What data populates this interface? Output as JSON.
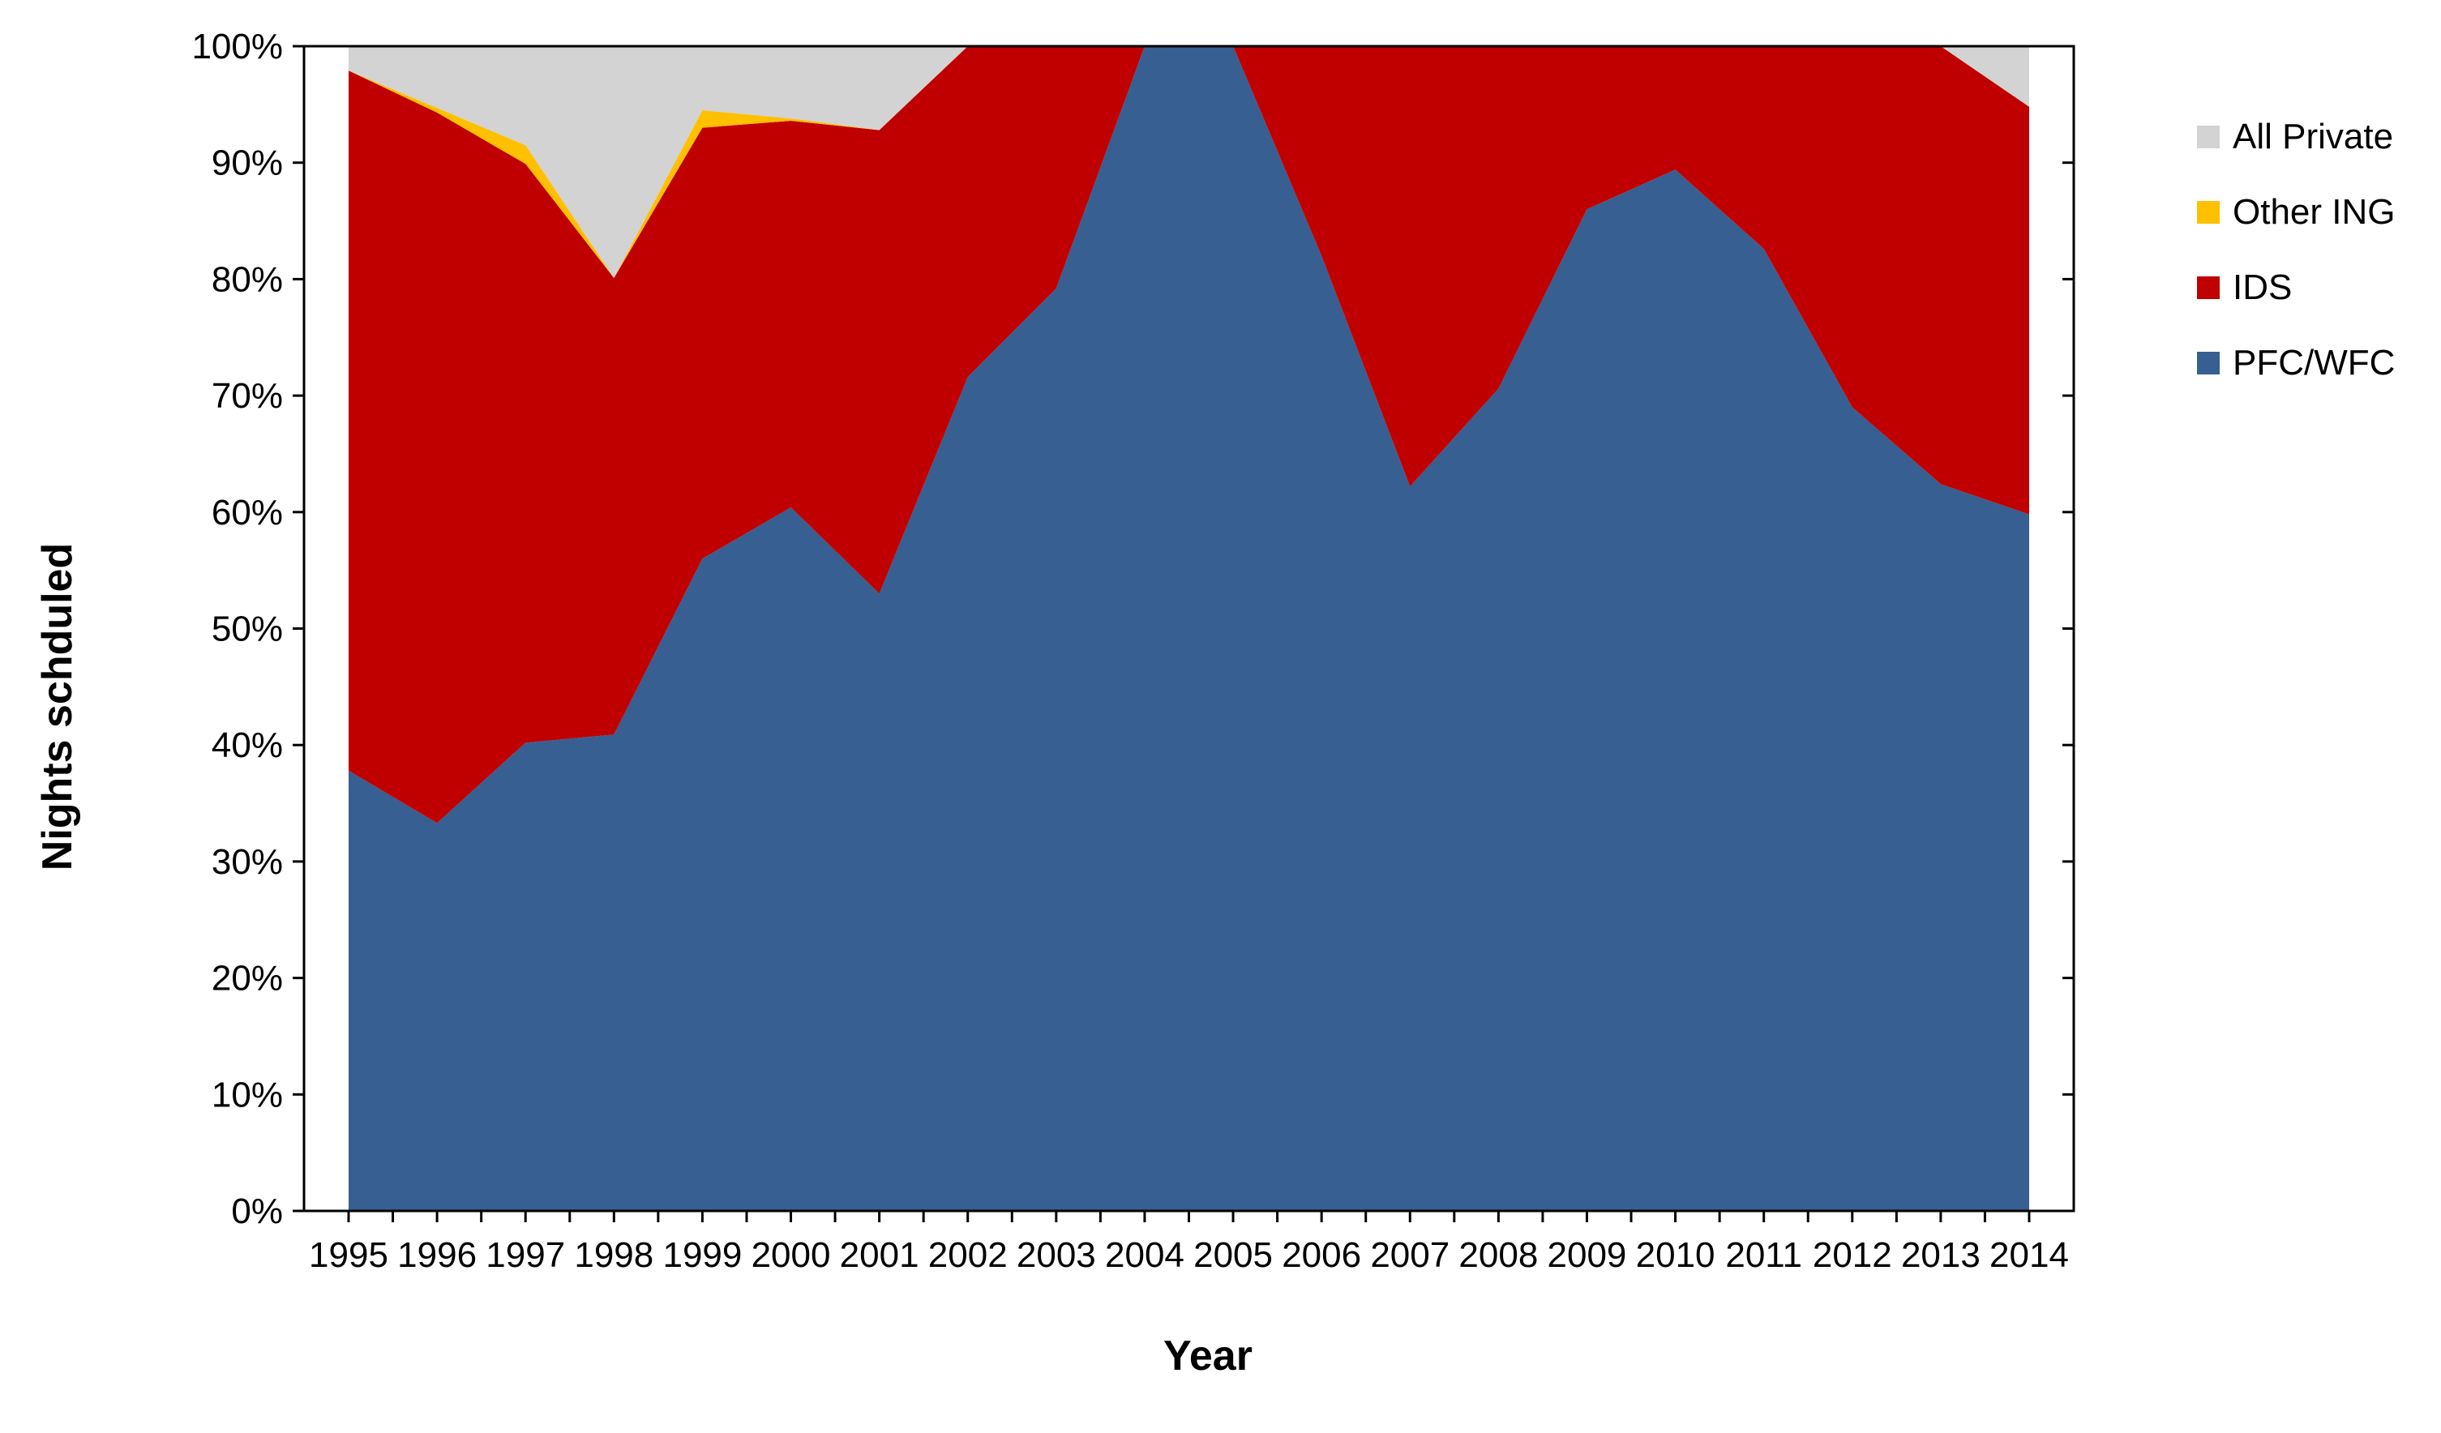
{
  "chart_data": {
    "type": "area",
    "stacked": true,
    "percent": true,
    "title": "",
    "xlabel": "Year",
    "ylabel": "Nights schduled",
    "ylim": [
      0,
      100
    ],
    "y_ticks": [
      "0%",
      "10%",
      "20%",
      "30%",
      "40%",
      "50%",
      "60%",
      "70%",
      "80%",
      "90%",
      "100%"
    ],
    "categories": [
      "1995",
      "1996",
      "1997",
      "1998",
      "1999",
      "2000",
      "2001",
      "2002",
      "2003",
      "2004",
      "2005",
      "2006",
      "2007",
      "2008",
      "2009",
      "2010",
      "2011",
      "2012",
      "2013",
      "2014"
    ],
    "series": [
      {
        "name": "PFC/WFC",
        "color": "#375F92",
        "values": [
          37.8,
          33.3,
          40.2,
          40.9,
          56.0,
          60.4,
          53.0,
          71.6,
          79.2,
          100.0,
          100.0,
          82.0,
          62.2,
          70.6,
          86.0,
          89.4,
          82.6,
          69.0,
          62.4,
          59.8
        ]
      },
      {
        "name": "IDS",
        "color": "#C00000",
        "values": [
          60.1,
          61.0,
          49.7,
          39.2,
          37.0,
          33.2,
          39.8,
          28.4,
          20.8,
          0.0,
          0.0,
          18.0,
          37.8,
          29.4,
          14.0,
          10.6,
          17.4,
          31.0,
          37.6,
          35.0
        ]
      },
      {
        "name": "Other ING",
        "color": "#FFC000",
        "values": [
          0.0,
          0.4,
          1.6,
          0.0,
          1.5,
          0.2,
          0.0,
          0.0,
          0.0,
          0.0,
          0.0,
          0.0,
          0.0,
          0.0,
          0.0,
          0.0,
          0.0,
          0.0,
          0.0,
          0.0
        ]
      },
      {
        "name": "All Private",
        "color": "#D3D3D3",
        "values": [
          2.1,
          5.3,
          8.5,
          19.9,
          5.5,
          6.2,
          7.2,
          0.0,
          0.0,
          0.0,
          0.0,
          0.0,
          0.0,
          0.0,
          0.0,
          0.0,
          0.0,
          0.0,
          0.0,
          5.2
        ]
      }
    ],
    "legend": {
      "position": "right",
      "order": [
        "All Private",
        "Other ING",
        "IDS",
        "PFC/WFC"
      ]
    },
    "grid": false
  }
}
